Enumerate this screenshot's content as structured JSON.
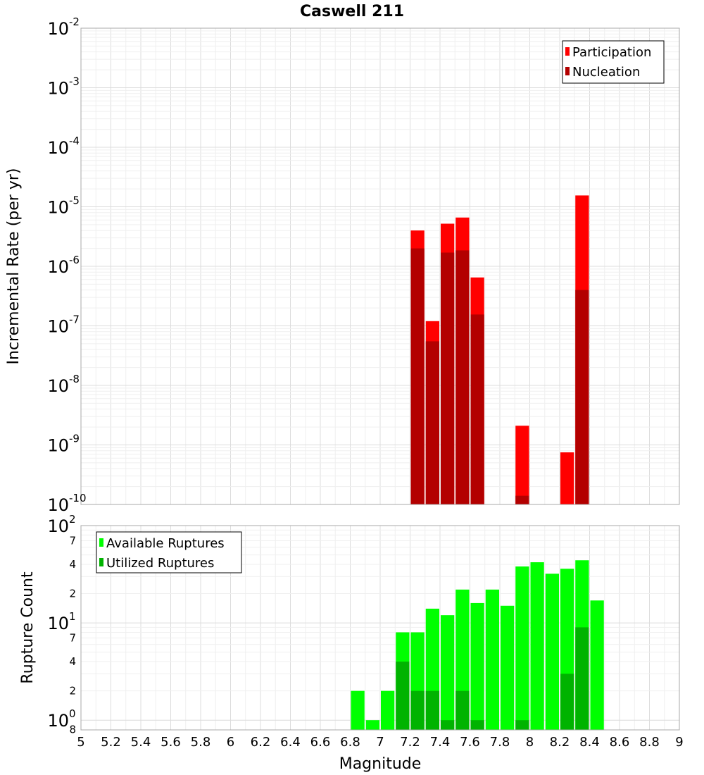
{
  "chart_data": [
    {
      "type": "bar",
      "title": "Caswell 211",
      "xlabel": "",
      "ylabel": "Incremental Rate (per yr)",
      "yscale": "log",
      "xlim": [
        5,
        9
      ],
      "ylim_exponents": [
        -10,
        -2
      ],
      "grid": true,
      "legend_position": "top-right",
      "bin_width": 0.1,
      "series": [
        {
          "name": "Participation",
          "color": "#ff0000",
          "x": [
            7.25,
            7.35,
            7.45,
            7.55,
            7.65,
            7.95,
            8.25,
            8.35
          ],
          "values": [
            4e-06,
            1.2e-07,
            5.2e-06,
            6.6e-06,
            6.5e-07,
            2.1e-09,
            7.5e-10,
            1.55e-05
          ]
        },
        {
          "name": "Nucleation",
          "color": "#b30000",
          "x": [
            7.25,
            7.35,
            7.45,
            7.55,
            7.65,
            7.95,
            8.35
          ],
          "values": [
            2e-06,
            5.5e-08,
            1.7e-06,
            1.85e-06,
            1.55e-07,
            1.4e-10,
            4e-07
          ]
        }
      ]
    },
    {
      "type": "bar",
      "title": "",
      "xlabel": "Magnitude",
      "ylabel": "Rupture Count",
      "yscale": "log",
      "xlim": [
        5,
        9
      ],
      "grid": true,
      "legend_position": "top-left",
      "bin_width": 0.1,
      "series": [
        {
          "name": "Available Ruptures",
          "color": "#00ff00",
          "x": [
            6.85,
            6.95,
            7.05,
            7.15,
            7.25,
            7.35,
            7.45,
            7.55,
            7.65,
            7.75,
            7.85,
            7.95,
            8.05,
            8.15,
            8.25,
            8.35,
            8.45
          ],
          "values": [
            2,
            1,
            2,
            8,
            8,
            14,
            12,
            22,
            16,
            22,
            15,
            38,
            42,
            32,
            36,
            44,
            17
          ]
        },
        {
          "name": "Utilized Ruptures",
          "color": "#00b300",
          "x": [
            7.15,
            7.25,
            7.35,
            7.55,
            7.45,
            7.65,
            7.95,
            8.25,
            8.35
          ],
          "values": [
            4,
            2,
            2,
            2,
            1,
            1,
            1,
            3,
            9
          ]
        }
      ]
    }
  ],
  "top_axis": {
    "y_ticks": [
      {
        "base": "10",
        "exp": "-2"
      },
      {
        "base": "10",
        "exp": "-3"
      },
      {
        "base": "10",
        "exp": "-4"
      },
      {
        "base": "10",
        "exp": "-5"
      },
      {
        "base": "10",
        "exp": "-6"
      },
      {
        "base": "10",
        "exp": "-7"
      },
      {
        "base": "10",
        "exp": "-8"
      },
      {
        "base": "10",
        "exp": "-9"
      },
      {
        "base": "10",
        "exp": "-10"
      }
    ]
  },
  "bottom_axis": {
    "y_ticks_major": [
      {
        "base": "10",
        "exp": "2"
      },
      {
        "base": "10",
        "exp": "1"
      },
      {
        "base": "10",
        "exp": "0"
      }
    ],
    "y_ticks_minor": [
      "7",
      "4",
      "2",
      "7",
      "4",
      "2",
      "8"
    ],
    "x_ticks": [
      "5",
      "5.2",
      "5.4",
      "5.6",
      "5.8",
      "6",
      "6.2",
      "6.4",
      "6.6",
      "6.8",
      "7",
      "7.2",
      "7.4",
      "7.6",
      "7.8",
      "8",
      "8.2",
      "8.4",
      "8.6",
      "8.8",
      "9"
    ]
  }
}
